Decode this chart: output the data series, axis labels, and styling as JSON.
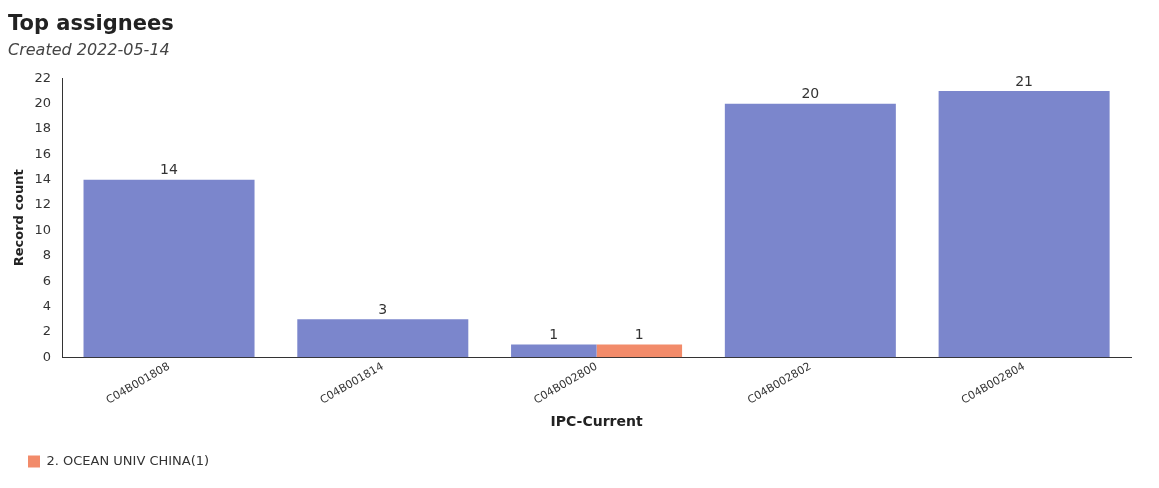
{
  "chart_data": {
    "type": "bar",
    "title": "Top assignees",
    "subtitle": "Created 2022-05-14",
    "xlabel": "IPC-Current",
    "ylabel": "Record count",
    "categories": [
      "C04B001808",
      "C04B001814",
      "C04B002800",
      "C04B002802",
      "C04B002804"
    ],
    "series": [
      {
        "color": "#7b86cc",
        "values": [
          14,
          3,
          1,
          20,
          21
        ]
      },
      {
        "name": "2. OCEAN UNIV CHINA(1)",
        "color": "#f28b6a",
        "values": [
          null,
          null,
          1,
          null,
          null
        ]
      }
    ],
    "ylim": [
      0,
      22
    ],
    "yticks": [
      0,
      2,
      4,
      6,
      8,
      10,
      12,
      14,
      16,
      18,
      20,
      22
    ],
    "grid": false,
    "legend": "bottom",
    "data_labels": true
  }
}
